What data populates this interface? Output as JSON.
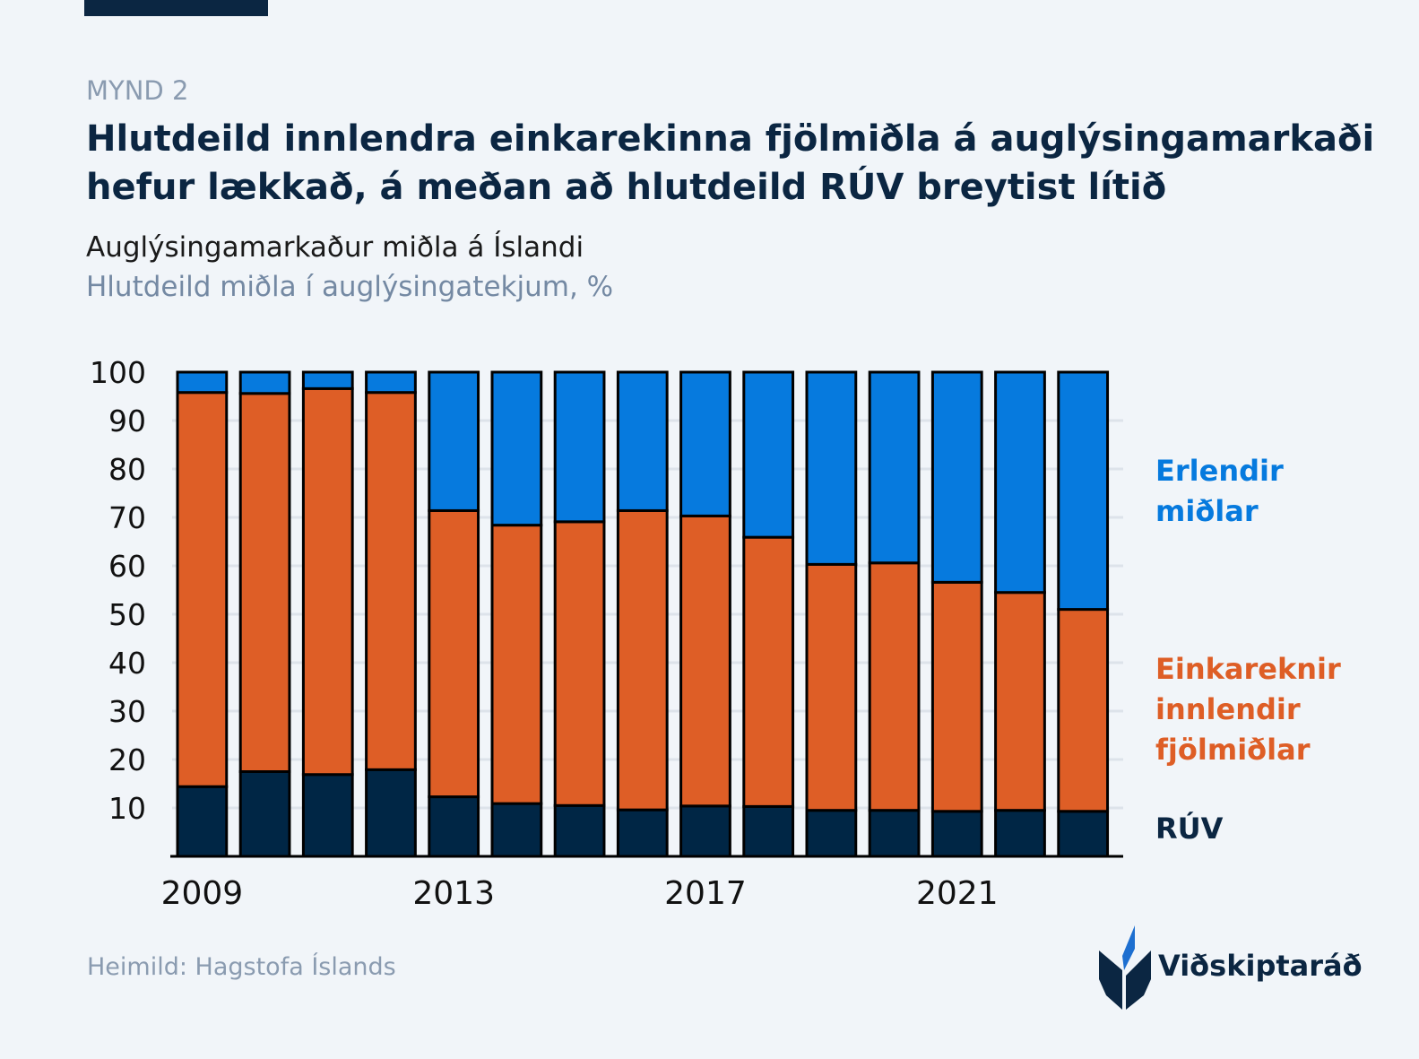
{
  "figure_label": "MYND 2",
  "title_line1": "Hlutdeild innlendra einkarekinna fjölmiðla á auglýsingamarkaði",
  "title_line2": "hefur lækkað, á meðan að hlutdeild RÚV breytist lítið",
  "subtitle": "Auglýsingamarkaður miðla á Íslandi",
  "unit_label": "Hlutdeild miðla í auglýsingatekjum, %",
  "source": "Heimild: Hagstofa Íslands",
  "logo_text": "Viðskiptaráð",
  "colors": {
    "background": "#f1f5f9",
    "ruv": "#002645",
    "private": "#de5e26",
    "foreign": "#067ade"
  },
  "chart_data": {
    "type": "bar",
    "stacked": true,
    "categories": [
      "2009",
      "2010",
      "2011",
      "2012",
      "2013",
      "2014",
      "2015",
      "2016",
      "2017",
      "2018",
      "2019",
      "2020",
      "2021",
      "2022",
      "2023"
    ],
    "x_tick_labels": [
      "2009",
      "2013",
      "2017",
      "2021"
    ],
    "y_tick_labels": [
      "10",
      "20",
      "30",
      "40",
      "50",
      "60",
      "70",
      "80",
      "90",
      "100"
    ],
    "ylim": [
      0,
      100
    ],
    "grid": true,
    "legend_placement": "right (direct labels)",
    "series": [
      {
        "name": "RÚV",
        "color": "#002645",
        "values": [
          14.4,
          17.5,
          16.9,
          17.9,
          12.3,
          10.9,
          10.5,
          9.6,
          10.4,
          10.3,
          9.5,
          9.5,
          9.3,
          9.5,
          9.3
        ]
      },
      {
        "name_lines": [
          "Einkareknir",
          "innlendir",
          "fjölmiðlar"
        ],
        "color": "#de5e26",
        "values": [
          81.4,
          78.1,
          79.7,
          77.9,
          59.1,
          57.5,
          58.6,
          61.8,
          59.9,
          55.6,
          50.8,
          51.1,
          47.3,
          45.0,
          41.7
        ]
      },
      {
        "name_lines": [
          "Erlendir",
          "miðlar"
        ],
        "color": "#067ade",
        "values": [
          4.2,
          4.4,
          3.4,
          4.2,
          28.6,
          31.6,
          30.9,
          28.6,
          29.7,
          34.1,
          39.7,
          39.4,
          43.4,
          45.5,
          49.0
        ]
      }
    ]
  }
}
